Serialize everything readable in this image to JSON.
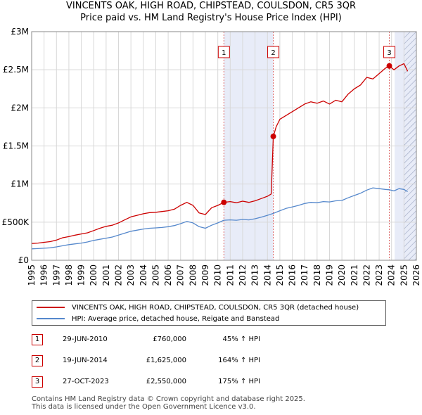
{
  "chart_data": {
    "type": "line",
    "title": "VINCENTS OAK, HIGH ROAD, CHIPSTEAD, COULSDON, CR5 3QR",
    "subtitle": "Price paid vs. HM Land Registry's House Price Index (HPI)",
    "xlim": [
      1995,
      2026
    ],
    "ylim": [
      0,
      3000000
    ],
    "y_ticks": [
      0,
      500000,
      1000000,
      1500000,
      2000000,
      2500000,
      3000000
    ],
    "y_tick_labels": [
      "£0",
      "£500K",
      "£1M",
      "£1.5M",
      "£2M",
      "£2.5M",
      "£3M"
    ],
    "x_ticks": [
      1995,
      1996,
      1997,
      1998,
      1999,
      2000,
      2001,
      2002,
      2003,
      2004,
      2005,
      2006,
      2007,
      2008,
      2009,
      2010,
      2011,
      2012,
      2013,
      2014,
      2015,
      2016,
      2017,
      2018,
      2019,
      2020,
      2021,
      2022,
      2023,
      2024,
      2025,
      2026
    ],
    "x_tick_labels": [
      "1995",
      "1996",
      "1997",
      "1998",
      "1999",
      "2000",
      "2001",
      "2002",
      "2003",
      "2004",
      "2005",
      "2006",
      "2007",
      "2008",
      "2009",
      "2010",
      "2011",
      "2012",
      "2013",
      "2014",
      "2015",
      "2016",
      "2017",
      "2018",
      "2019",
      "2020",
      "2021",
      "2022",
      "2023",
      "2024",
      "2025",
      "2026"
    ],
    "grid": true,
    "shaded_periods": [
      {
        "from": 2010.49,
        "to": 2014.47
      },
      {
        "from": 2024.25,
        "to": 2026.0,
        "hatched_from": 2025.0
      }
    ],
    "series": [
      {
        "name": "VINCENTS OAK, HIGH ROAD, CHIPSTEAD, COULSDON, CR5 3QR (detached house)",
        "color": "#cc0000",
        "x": [
          1995.0,
          1995.5,
          1996.0,
          1996.5,
          1997.0,
          1997.5,
          1998.0,
          1998.5,
          1999.0,
          1999.5,
          2000.0,
          2000.5,
          2001.0,
          2001.5,
          2002.0,
          2002.5,
          2003.0,
          2003.5,
          2004.0,
          2004.5,
          2005.0,
          2005.5,
          2006.0,
          2006.5,
          2007.0,
          2007.5,
          2008.0,
          2008.5,
          2009.0,
          2009.5,
          2010.0,
          2010.49,
          2011.0,
          2011.5,
          2012.0,
          2012.5,
          2013.0,
          2013.5,
          2014.0,
          2014.3,
          2014.47,
          2014.7,
          2015.0,
          2015.5,
          2016.0,
          2016.5,
          2017.0,
          2017.5,
          2018.0,
          2018.5,
          2019.0,
          2019.5,
          2020.0,
          2020.5,
          2021.0,
          2021.5,
          2022.0,
          2022.5,
          2023.0,
          2023.5,
          2023.82,
          2024.2,
          2024.6,
          2025.0,
          2025.3
        ],
        "values": [
          220000,
          225000,
          235000,
          245000,
          265000,
          295000,
          310000,
          330000,
          345000,
          360000,
          390000,
          420000,
          445000,
          460000,
          490000,
          530000,
          570000,
          590000,
          610000,
          625000,
          630000,
          640000,
          650000,
          670000,
          720000,
          760000,
          720000,
          620000,
          600000,
          690000,
          720000,
          760000,
          770000,
          755000,
          775000,
          760000,
          780000,
          810000,
          840000,
          870000,
          1625000,
          1750000,
          1850000,
          1900000,
          1950000,
          2000000,
          2050000,
          2080000,
          2060000,
          2090000,
          2050000,
          2100000,
          2080000,
          2180000,
          2250000,
          2300000,
          2400000,
          2380000,
          2450000,
          2520000,
          2550000,
          2500000,
          2550000,
          2580000,
          2480000
        ]
      },
      {
        "name": "HPI: Average price, detached house, Reigate and Banstead",
        "color": "#5588cc",
        "x": [
          1995.0,
          1995.5,
          1996.0,
          1996.5,
          1997.0,
          1997.5,
          1998.0,
          1998.5,
          1999.0,
          1999.5,
          2000.0,
          2000.5,
          2001.0,
          2001.5,
          2002.0,
          2002.5,
          2003.0,
          2003.5,
          2004.0,
          2004.5,
          2005.0,
          2005.5,
          2006.0,
          2006.5,
          2007.0,
          2007.5,
          2008.0,
          2008.5,
          2009.0,
          2009.5,
          2010.0,
          2010.49,
          2011.0,
          2011.5,
          2012.0,
          2012.5,
          2013.0,
          2013.5,
          2014.0,
          2014.47,
          2015.0,
          2015.5,
          2016.0,
          2016.5,
          2017.0,
          2017.5,
          2018.0,
          2018.5,
          2019.0,
          2019.5,
          2020.0,
          2020.5,
          2021.0,
          2021.5,
          2022.0,
          2022.5,
          2023.0,
          2023.5,
          2023.82,
          2024.2,
          2024.6,
          2025.0,
          2025.3
        ],
        "values": [
          150000,
          153000,
          158000,
          163000,
          175000,
          190000,
          205000,
          215000,
          225000,
          240000,
          260000,
          275000,
          290000,
          305000,
          330000,
          355000,
          380000,
          395000,
          410000,
          420000,
          425000,
          430000,
          440000,
          455000,
          480000,
          510000,
          490000,
          440000,
          420000,
          460000,
          490000,
          525000,
          530000,
          525000,
          535000,
          530000,
          545000,
          565000,
          590000,
          615000,
          650000,
          680000,
          700000,
          720000,
          745000,
          760000,
          755000,
          770000,
          765000,
          780000,
          785000,
          820000,
          850000,
          880000,
          920000,
          950000,
          940000,
          930000,
          925000,
          910000,
          940000,
          930000,
          900000
        ]
      }
    ],
    "sale_markers": [
      {
        "label": "1",
        "x": 2010.49,
        "value": 760000
      },
      {
        "label": "2",
        "x": 2014.47,
        "value": 1625000
      },
      {
        "label": "3",
        "x": 2023.82,
        "value": 2550000
      }
    ]
  },
  "legend": {
    "entries": [
      {
        "label": "VINCENTS OAK, HIGH ROAD, CHIPSTEAD, COULSDON, CR5 3QR (detached house)",
        "color": "#cc0000"
      },
      {
        "label": "HPI: Average price, detached house, Reigate and Banstead",
        "color": "#5588cc"
      }
    ]
  },
  "transactions": [
    {
      "num": "1",
      "date": "29-JUN-2010",
      "price": "£760,000",
      "hpi": "45% ↑ HPI"
    },
    {
      "num": "2",
      "date": "19-JUN-2014",
      "price": "£1,625,000",
      "hpi": "164% ↑ HPI"
    },
    {
      "num": "3",
      "date": "27-OCT-2023",
      "price": "£2,550,000",
      "hpi": "175% ↑ HPI"
    }
  ],
  "footer": {
    "line1": "Contains HM Land Registry data © Crown copyright and database right 2025.",
    "line2": "This data is licensed under the Open Government Licence v3.0."
  }
}
